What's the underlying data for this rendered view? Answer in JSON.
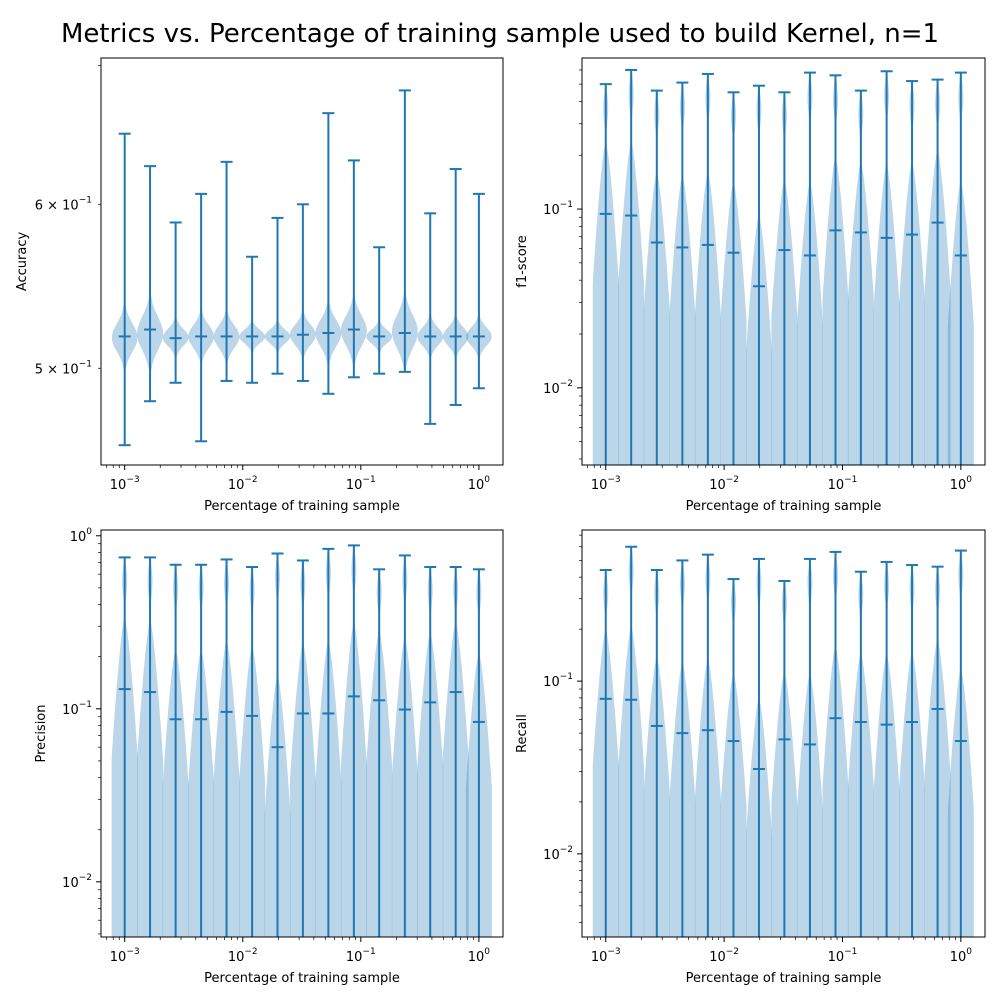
{
  "title": "Metrics vs. Percentage of training sample used to build Kernel, n=1",
  "colors": {
    "violin": "#1f77b4",
    "violin_fill_opacity": 0.3,
    "axis": "#000000"
  },
  "chart_data": [
    {
      "type": "violin",
      "xlabel": "Percentage of training sample",
      "ylabel": "Accuracy",
      "xscale": "log",
      "yscale": "log",
      "xlim": [
        0.00063,
        1.6
      ],
      "ylim": [
        0.449,
        0.706
      ],
      "x_ticks": [
        {
          "value": 0.001,
          "base": "10",
          "exp": "−3"
        },
        {
          "value": 0.01,
          "base": "10",
          "exp": "−2"
        },
        {
          "value": 0.1,
          "base": "10",
          "exp": "−1"
        },
        {
          "value": 1,
          "base": "10",
          "exp": "0"
        }
      ],
      "y_ticks": [
        {
          "value": 0.6,
          "mant": "6 × 10",
          "exp": "−1"
        },
        {
          "value": 0.5,
          "mant": "5 × 10",
          "exp": "−1"
        }
      ],
      "x": [
        0.001,
        0.00164,
        0.0027,
        0.00444,
        0.00729,
        0.012,
        0.0197,
        0.0323,
        0.0531,
        0.0873,
        0.143,
        0.236,
        0.387,
        0.636,
        1.0
      ],
      "min": [
        0.459,
        0.482,
        0.492,
        0.461,
        0.493,
        0.492,
        0.497,
        0.493,
        0.486,
        0.495,
        0.497,
        0.498,
        0.47,
        0.48,
        0.489
      ],
      "median": [
        0.518,
        0.522,
        0.517,
        0.518,
        0.518,
        0.518,
        0.518,
        0.519,
        0.52,
        0.522,
        0.518,
        0.52,
        0.518,
        0.518,
        0.518
      ],
      "max": [
        0.649,
        0.626,
        0.588,
        0.607,
        0.629,
        0.566,
        0.591,
        0.6,
        0.664,
        0.63,
        0.572,
        0.681,
        0.594,
        0.624,
        0.607
      ],
      "violin_core": [
        [
          0.505,
          0.53
        ],
        [
          0.505,
          0.535
        ],
        [
          0.51,
          0.525
        ],
        [
          0.508,
          0.528
        ],
        [
          0.508,
          0.528
        ],
        [
          0.512,
          0.524
        ],
        [
          0.512,
          0.524
        ],
        [
          0.51,
          0.528
        ],
        [
          0.508,
          0.532
        ],
        [
          0.508,
          0.535
        ],
        [
          0.512,
          0.524
        ],
        [
          0.506,
          0.536
        ],
        [
          0.51,
          0.526
        ],
        [
          0.51,
          0.526
        ],
        [
          0.51,
          0.526
        ]
      ]
    },
    {
      "type": "violin",
      "xlabel": "Percentage of training sample",
      "ylabel": "f1-score",
      "xscale": "log",
      "yscale": "log",
      "xlim": [
        0.00063,
        1.6
      ],
      "ylim": [
        0.0037,
        0.7
      ],
      "x_ticks": [
        {
          "value": 0.001,
          "base": "10",
          "exp": "−3"
        },
        {
          "value": 0.01,
          "base": "10",
          "exp": "−2"
        },
        {
          "value": 0.1,
          "base": "10",
          "exp": "−1"
        },
        {
          "value": 1,
          "base": "10",
          "exp": "0"
        }
      ],
      "y_ticks": [
        {
          "value": 0.1,
          "base": "10",
          "exp": "−1"
        },
        {
          "value": 0.01,
          "base": "10",
          "exp": "−2"
        }
      ],
      "x": [
        0.001,
        0.00164,
        0.0027,
        0.00444,
        0.00729,
        0.012,
        0.0197,
        0.0323,
        0.0531,
        0.0873,
        0.143,
        0.236,
        0.387,
        0.636,
        1.0
      ],
      "median": [
        0.094,
        0.092,
        0.065,
        0.061,
        0.063,
        0.057,
        0.037,
        0.059,
        0.055,
        0.076,
        0.074,
        0.069,
        0.072,
        0.084,
        0.055
      ],
      "max": [
        0.5,
        0.6,
        0.46,
        0.51,
        0.57,
        0.45,
        0.49,
        0.45,
        0.58,
        0.56,
        0.46,
        0.59,
        0.52,
        0.53,
        0.58
      ]
    },
    {
      "type": "violin",
      "xlabel": "Percentage of training sample",
      "ylabel": "Precision",
      "xscale": "log",
      "yscale": "log",
      "xlim": [
        0.00063,
        1.6
      ],
      "ylim": [
        0.0048,
        1.08
      ],
      "x_ticks": [
        {
          "value": 0.001,
          "base": "10",
          "exp": "−3"
        },
        {
          "value": 0.01,
          "base": "10",
          "exp": "−2"
        },
        {
          "value": 0.1,
          "base": "10",
          "exp": "−1"
        },
        {
          "value": 1,
          "base": "10",
          "exp": "0"
        }
      ],
      "y_ticks": [
        {
          "value": 1,
          "base": "10",
          "exp": "0"
        },
        {
          "value": 0.1,
          "base": "10",
          "exp": "−1"
        },
        {
          "value": 0.01,
          "base": "10",
          "exp": "−2"
        }
      ],
      "x": [
        0.001,
        0.00164,
        0.0027,
        0.00444,
        0.00729,
        0.012,
        0.0197,
        0.0323,
        0.0531,
        0.0873,
        0.143,
        0.236,
        0.387,
        0.636,
        1.0
      ],
      "median": [
        0.13,
        0.125,
        0.087,
        0.087,
        0.096,
        0.091,
        0.06,
        0.094,
        0.094,
        0.118,
        0.112,
        0.099,
        0.109,
        0.125,
        0.084
      ],
      "max": [
        0.75,
        0.75,
        0.68,
        0.68,
        0.73,
        0.66,
        0.79,
        0.72,
        0.84,
        0.88,
        0.64,
        0.77,
        0.66,
        0.66,
        0.64
      ]
    },
    {
      "type": "violin",
      "xlabel": "Percentage of training sample",
      "ylabel": "Recall",
      "xscale": "log",
      "yscale": "log",
      "xlim": [
        0.00063,
        1.6
      ],
      "ylim": [
        0.0033,
        0.75
      ],
      "x_ticks": [
        {
          "value": 0.001,
          "base": "10",
          "exp": "−3"
        },
        {
          "value": 0.01,
          "base": "10",
          "exp": "−2"
        },
        {
          "value": 0.1,
          "base": "10",
          "exp": "−1"
        },
        {
          "value": 1,
          "base": "10",
          "exp": "0"
        }
      ],
      "y_ticks": [
        {
          "value": 0.1,
          "base": "10",
          "exp": "−1"
        },
        {
          "value": 0.01,
          "base": "10",
          "exp": "−2"
        }
      ],
      "x": [
        0.001,
        0.00164,
        0.0027,
        0.00444,
        0.00729,
        0.012,
        0.0197,
        0.0323,
        0.0531,
        0.0873,
        0.143,
        0.236,
        0.387,
        0.636,
        1.0
      ],
      "median": [
        0.079,
        0.078,
        0.055,
        0.05,
        0.052,
        0.045,
        0.031,
        0.046,
        0.043,
        0.061,
        0.058,
        0.056,
        0.058,
        0.069,
        0.045
      ],
      "max": [
        0.44,
        0.6,
        0.44,
        0.5,
        0.54,
        0.39,
        0.51,
        0.38,
        0.51,
        0.56,
        0.43,
        0.49,
        0.47,
        0.46,
        0.57
      ]
    }
  ]
}
